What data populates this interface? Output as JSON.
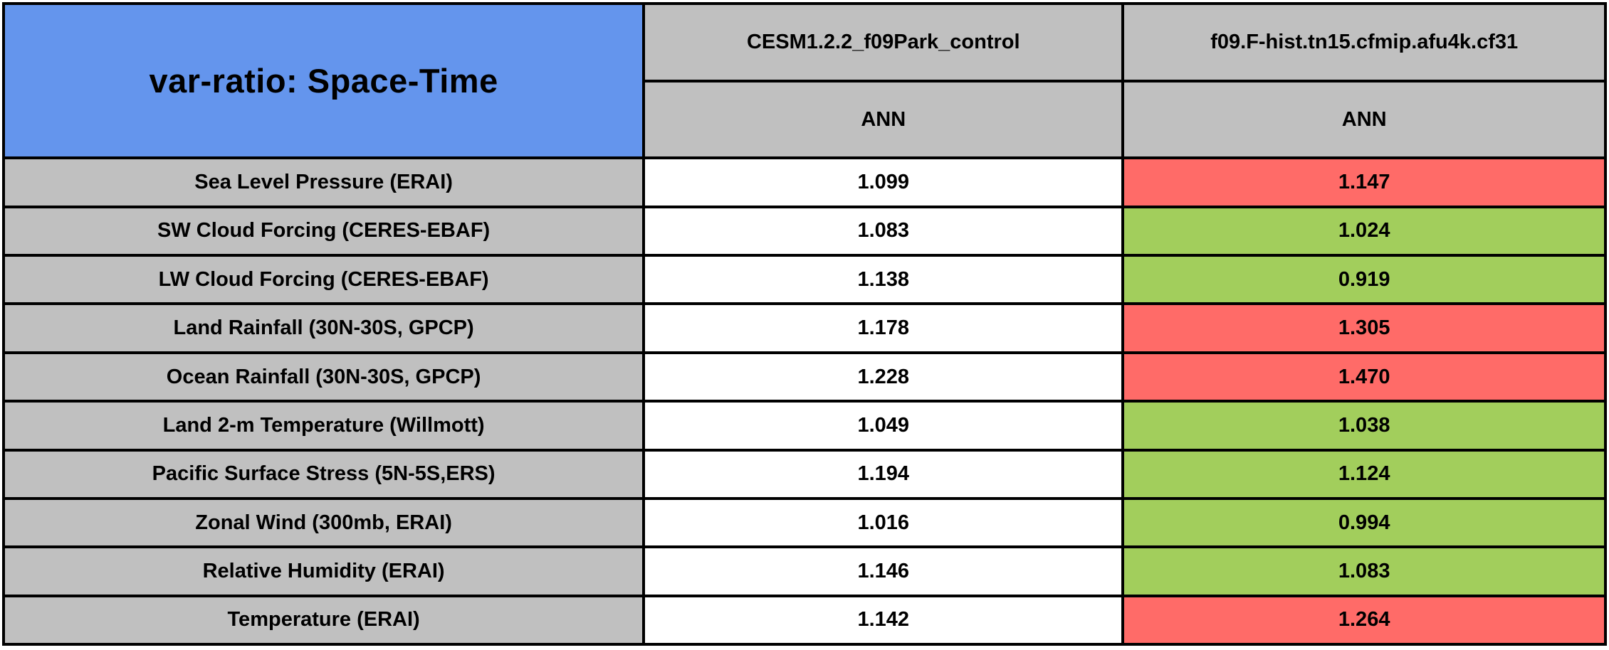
{
  "title": "var-ratio: Space-Time",
  "columns": [
    {
      "model": "CESM1.2.2_f09Park_control",
      "season": "ANN"
    },
    {
      "model": "f09.F-hist.tn15.cfmip.afu4k.cf31",
      "season": "ANN"
    }
  ],
  "rows": [
    {
      "label": "Sea Level Pressure (ERAI)",
      "cells": [
        {
          "value": "1.099",
          "status": "control"
        },
        {
          "value": "1.147",
          "status": "worse"
        }
      ]
    },
    {
      "label": "SW Cloud Forcing (CERES-EBAF)",
      "cells": [
        {
          "value": "1.083",
          "status": "control"
        },
        {
          "value": "1.024",
          "status": "better"
        }
      ]
    },
    {
      "label": "LW Cloud Forcing (CERES-EBAF)",
      "cells": [
        {
          "value": "1.138",
          "status": "control"
        },
        {
          "value": "0.919",
          "status": "better"
        }
      ]
    },
    {
      "label": "Land Rainfall (30N-30S, GPCP)",
      "cells": [
        {
          "value": "1.178",
          "status": "control"
        },
        {
          "value": "1.305",
          "status": "worse"
        }
      ]
    },
    {
      "label": "Ocean Rainfall (30N-30S, GPCP)",
      "cells": [
        {
          "value": "1.228",
          "status": "control"
        },
        {
          "value": "1.470",
          "status": "worse"
        }
      ]
    },
    {
      "label": "Land 2-m Temperature (Willmott)",
      "cells": [
        {
          "value": "1.049",
          "status": "control"
        },
        {
          "value": "1.038",
          "status": "better"
        }
      ]
    },
    {
      "label": "Pacific Surface Stress (5N-5S,ERS)",
      "cells": [
        {
          "value": "1.194",
          "status": "control"
        },
        {
          "value": "1.124",
          "status": "better"
        }
      ]
    },
    {
      "label": "Zonal Wind (300mb, ERAI)",
      "cells": [
        {
          "value": "1.016",
          "status": "control"
        },
        {
          "value": "0.994",
          "status": "better"
        }
      ]
    },
    {
      "label": "Relative Humidity (ERAI)",
      "cells": [
        {
          "value": "1.146",
          "status": "control"
        },
        {
          "value": "1.083",
          "status": "better"
        }
      ]
    },
    {
      "label": "Temperature (ERAI)",
      "cells": [
        {
          "value": "1.142",
          "status": "control"
        },
        {
          "value": "1.264",
          "status": "worse"
        }
      ]
    }
  ],
  "colors": {
    "header_blue": "#6495ed",
    "header_gray": "#c0c0c0",
    "control_white": "#ffffff",
    "worse_red": "#ff6b68",
    "better_green": "#a2ce5c",
    "border_black": "#000000"
  },
  "chart_data": {
    "type": "table",
    "title": "var-ratio: Space-Time",
    "column_groups": [
      {
        "model": "CESM1.2.2_f09Park_control",
        "season": "ANN"
      },
      {
        "model": "f09.F-hist.tn15.cfmip.afu4k.cf31",
        "season": "ANN"
      }
    ],
    "row_labels": [
      "Sea Level Pressure (ERAI)",
      "SW Cloud Forcing (CERES-EBAF)",
      "LW Cloud Forcing (CERES-EBAF)",
      "Land Rainfall (30N-30S, GPCP)",
      "Ocean Rainfall (30N-30S, GPCP)",
      "Land 2-m Temperature (Willmott)",
      "Pacific Surface Stress (5N-5S,ERS)",
      "Zonal Wind (300mb, ERAI)",
      "Relative Humidity (ERAI)",
      "Temperature (ERAI)"
    ],
    "values": [
      [
        1.099,
        1.147
      ],
      [
        1.083,
        1.024
      ],
      [
        1.138,
        0.919
      ],
      [
        1.178,
        1.305
      ],
      [
        1.228,
        1.47
      ],
      [
        1.049,
        1.038
      ],
      [
        1.194,
        1.124
      ],
      [
        1.016,
        0.994
      ],
      [
        1.146,
        1.083
      ],
      [
        1.142,
        1.264
      ]
    ],
    "cell_highlight": [
      [
        "white",
        "red"
      ],
      [
        "white",
        "green"
      ],
      [
        "white",
        "green"
      ],
      [
        "white",
        "red"
      ],
      [
        "white",
        "red"
      ],
      [
        "white",
        "green"
      ],
      [
        "white",
        "green"
      ],
      [
        "white",
        "green"
      ],
      [
        "white",
        "green"
      ],
      [
        "white",
        "red"
      ]
    ],
    "legend_note": "red = variance ratio worse than control, green = better; control column uncolored"
  }
}
